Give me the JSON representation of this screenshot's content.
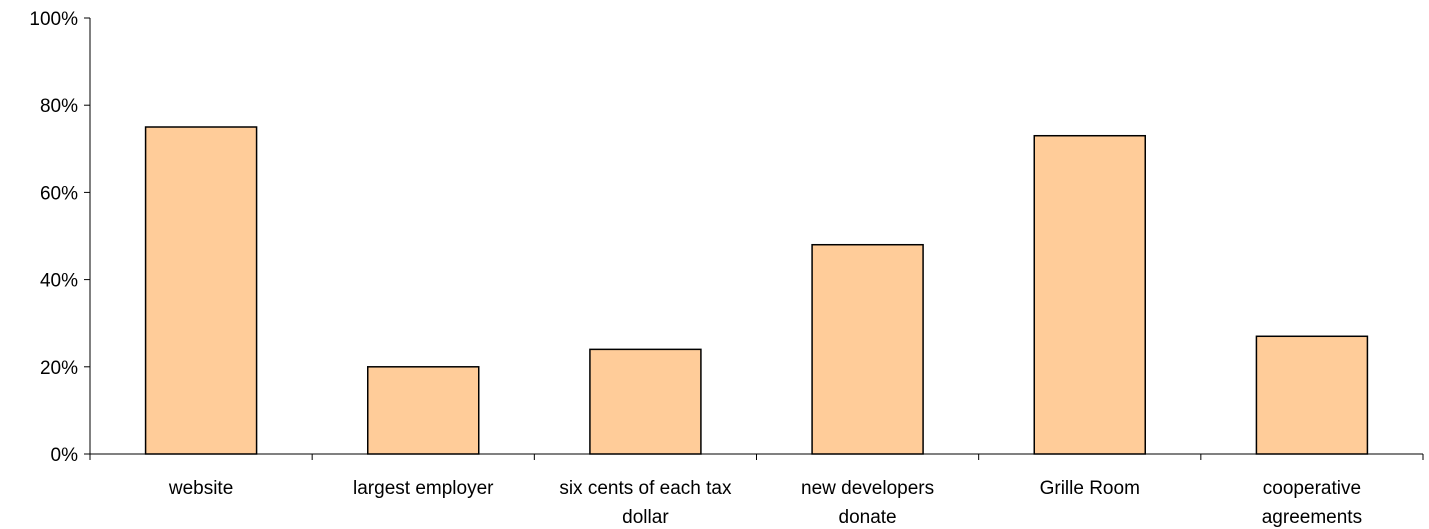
{
  "chart_data": {
    "type": "bar",
    "categories": [
      [
        "website"
      ],
      [
        "largest employer"
      ],
      [
        "six cents of each tax",
        "dollar"
      ],
      [
        "new developers",
        "donate"
      ],
      [
        "Grille Room"
      ],
      [
        "cooperative",
        "agreements"
      ]
    ],
    "values": [
      75,
      20,
      24,
      48,
      73,
      27
    ],
    "ylim": [
      0,
      100
    ],
    "yticks": [
      "0%",
      "20%",
      "40%",
      "60%",
      "80%",
      "100%"
    ],
    "ytick_values": [
      0,
      20,
      40,
      60,
      80,
      100
    ],
    "title": "",
    "xlabel": "",
    "ylabel": "",
    "grid": false,
    "bar_color": "#FFCC99",
    "edge_color": "#000000"
  }
}
